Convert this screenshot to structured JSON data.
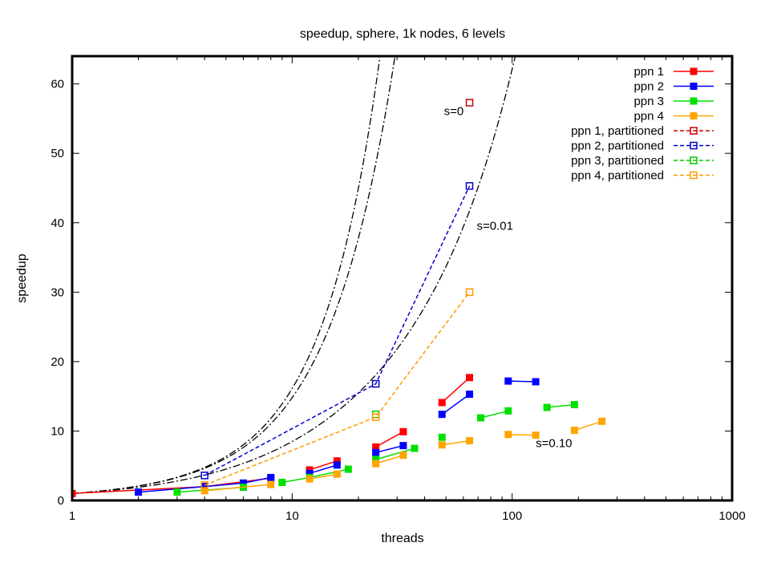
{
  "chart_data": {
    "type": "line",
    "title": "speedup, sphere, 1k nodes, 6 levels",
    "xlabel": "threads",
    "ylabel": "speedup",
    "xscale": "log",
    "xlim": [
      1,
      1000
    ],
    "ylim": [
      0,
      64
    ],
    "xticks": [
      1,
      10,
      100,
      1000
    ],
    "xtick_labels": [
      "1",
      "10",
      "100",
      "1000"
    ],
    "yticks": [
      0,
      10,
      20,
      30,
      40,
      50,
      60
    ],
    "ytick_labels": [
      "0",
      "10",
      "20",
      "30",
      "40",
      "50",
      "60"
    ],
    "grid": false,
    "legend_position": "top-right",
    "series": [
      {
        "name": "ppn 1",
        "color": "#ff0000",
        "style": "solid",
        "marker": "filled-square",
        "segments": [
          [
            [
              1,
              1.0
            ],
            [
              4,
              2.0
            ],
            [
              8,
              3.2
            ]
          ],
          [
            [
              12,
              4.4
            ],
            [
              16,
              5.7
            ]
          ],
          [
            [
              24,
              7.7
            ],
            [
              32,
              9.9
            ]
          ],
          [
            [
              48,
              14.1
            ],
            [
              64,
              17.7
            ]
          ]
        ]
      },
      {
        "name": "ppn 2",
        "color": "#0000ff",
        "style": "solid",
        "marker": "filled-square",
        "segments": [
          [
            [
              2,
              1.2
            ],
            [
              4,
              2.0
            ],
            [
              6,
              2.5
            ],
            [
              8,
              3.3
            ]
          ],
          [
            [
              12,
              3.9
            ],
            [
              16,
              5.1
            ]
          ],
          [
            [
              24,
              6.9
            ],
            [
              32,
              7.9
            ]
          ],
          [
            [
              48,
              12.4
            ],
            [
              64,
              15.3
            ]
          ],
          [
            [
              96,
              17.2
            ],
            [
              128,
              17.1
            ]
          ]
        ]
      },
      {
        "name": "ppn 3",
        "color": "#00e000",
        "style": "solid",
        "marker": "filled-square",
        "segments": [
          [
            [
              3,
              1.2
            ],
            [
              6,
              1.9
            ]
          ],
          [
            [
              9,
              2.6
            ],
            [
              12,
              3.3
            ],
            [
              18,
              4.5
            ]
          ],
          [
            [
              24,
              5.9
            ],
            [
              36,
              7.5
            ]
          ],
          [
            [
              48,
              9.1
            ]
          ],
          [
            [
              72,
              11.9
            ],
            [
              96,
              12.9
            ]
          ],
          [
            [
              144,
              13.4
            ],
            [
              192,
              13.8
            ]
          ]
        ]
      },
      {
        "name": "ppn 4",
        "color": "#ffa500",
        "style": "solid",
        "marker": "filled-square",
        "segments": [
          [
            [
              4,
              1.4
            ],
            [
              8,
              2.3
            ]
          ],
          [
            [
              12,
              3.1
            ],
            [
              16,
              3.8
            ]
          ],
          [
            [
              24,
              5.3
            ],
            [
              32,
              6.5
            ]
          ],
          [
            [
              48,
              8.0
            ],
            [
              64,
              8.6
            ]
          ],
          [
            [
              96,
              9.5
            ],
            [
              128,
              9.4
            ]
          ],
          [
            [
              192,
              10.1
            ],
            [
              256,
              11.4
            ]
          ]
        ]
      },
      {
        "name": "ppn 1, partitioned",
        "color": "#cc0000",
        "style": "dashed",
        "marker": "open-square",
        "segments": [
          [
            [
              64,
              57.3
            ]
          ]
        ]
      },
      {
        "name": "ppn 2, partitioned",
        "color": "#0000cc",
        "style": "dashed",
        "marker": "open-square",
        "segments": [
          [
            [
              4,
              3.6
            ],
            [
              24,
              16.8
            ],
            [
              64,
              45.3
            ]
          ]
        ]
      },
      {
        "name": "ppn 3, partitioned",
        "color": "#00cc00",
        "style": "dashed",
        "marker": "open-square",
        "segments": [
          [
            [
              24,
              12.4
            ]
          ]
        ]
      },
      {
        "name": "ppn 4, partitioned",
        "color": "#ff9900",
        "style": "dashed",
        "marker": "open-square",
        "segments": [
          [
            [
              4,
              2.2
            ],
            [
              24,
              12.0
            ],
            [
              64,
              30.0
            ]
          ]
        ]
      }
    ],
    "model_curves": [
      {
        "label": "s=0",
        "s": 0,
        "label_at": [
          49,
          55.5
        ],
        "x_range": [
          1,
          700
        ]
      },
      {
        "label": "s=0.01",
        "s": 0.01,
        "label_at": [
          69,
          39.0
        ],
        "x_range": [
          1,
          700
        ]
      },
      {
        "label": "s=0.10",
        "s": 0.1,
        "label_at": [
          128,
          7.7
        ],
        "x_range": [
          1,
          256
        ]
      }
    ]
  }
}
